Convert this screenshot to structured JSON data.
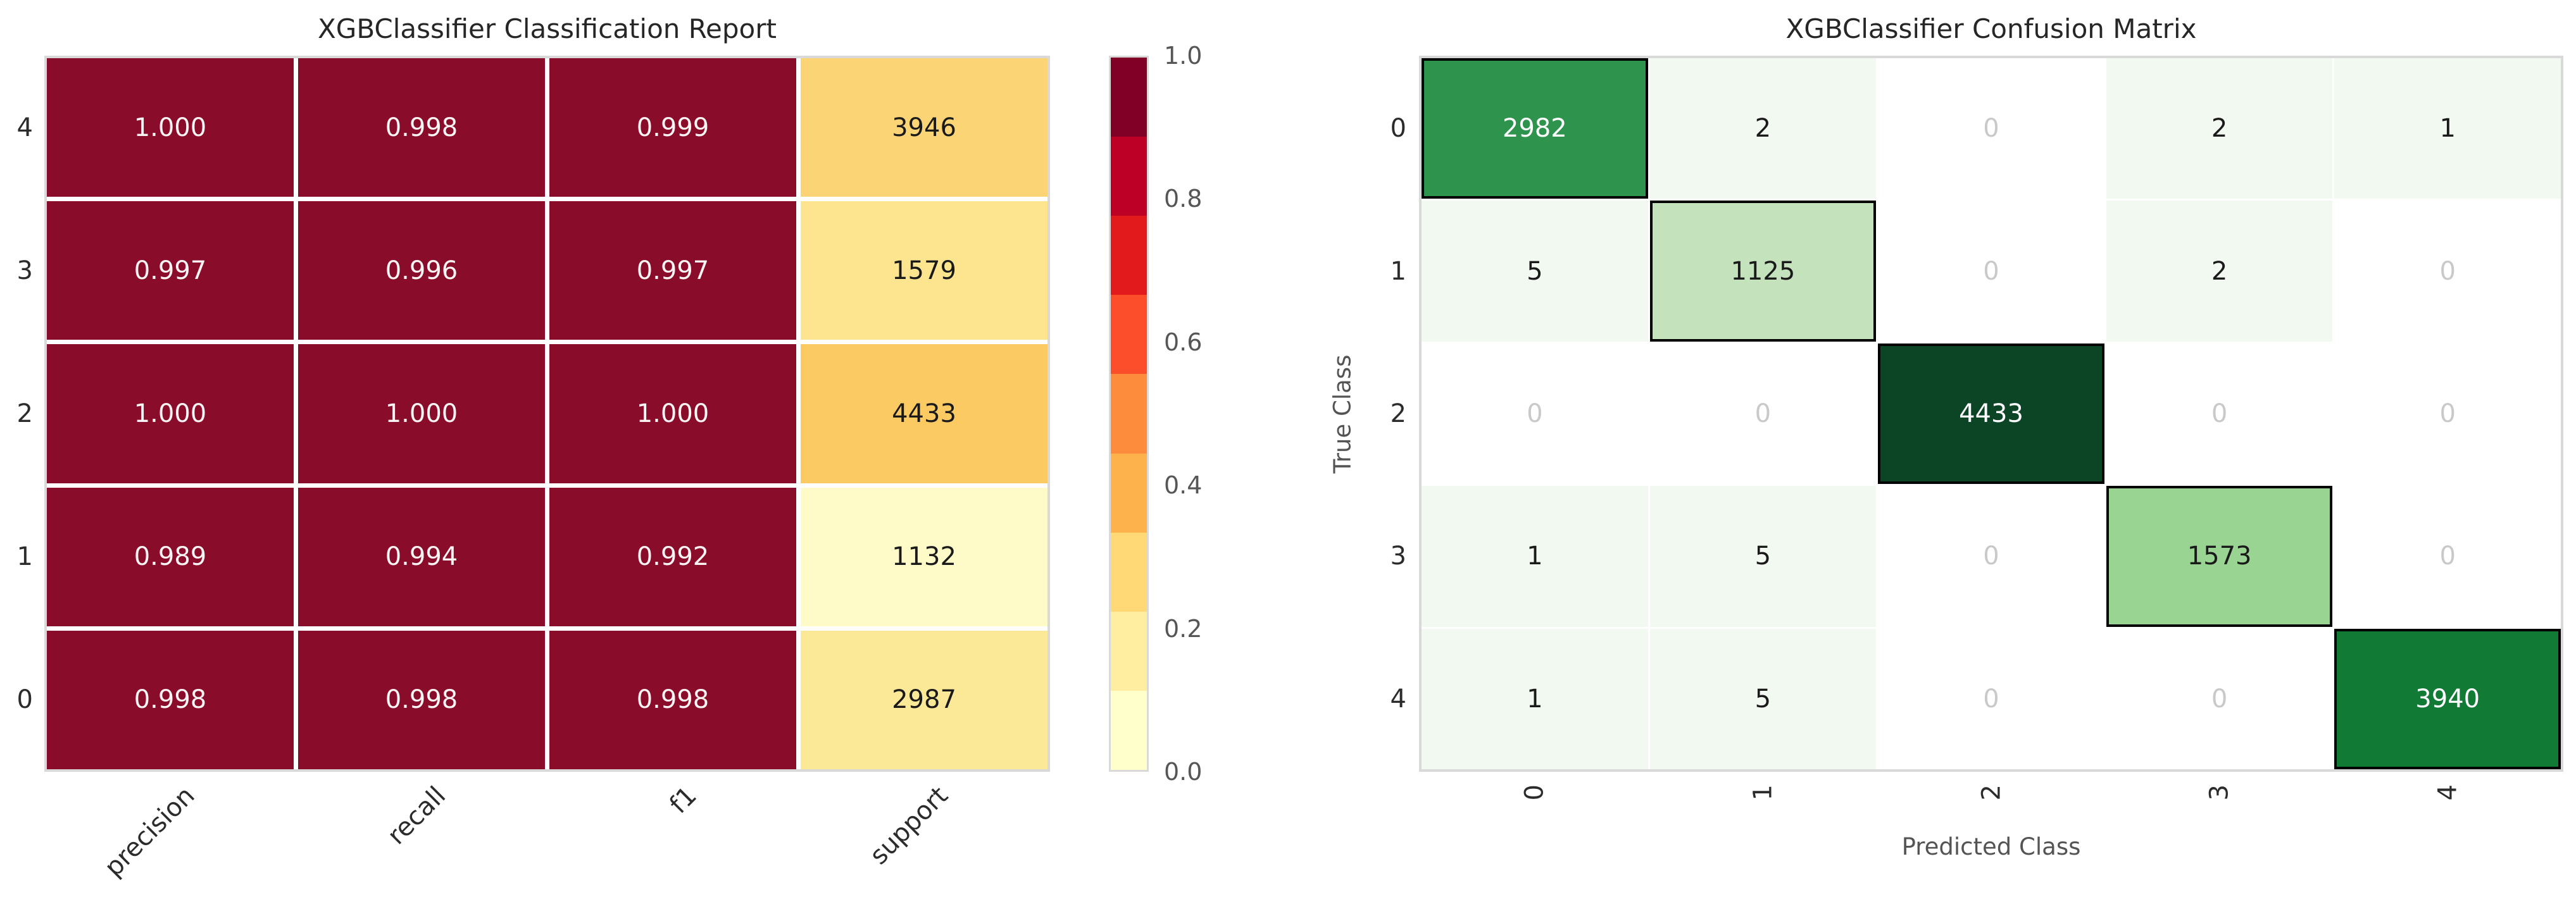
{
  "figure": {
    "background": "#ffffff"
  },
  "styles": {
    "spine_color": "#d9d9d9",
    "grid_line_color": "#ffffff",
    "title_color": "#262626",
    "tick_color": "#2b2b2b",
    "axis_label_color": "#545454",
    "colorbar_tick_color": "#565656",
    "diagonal_border_color": "#000000"
  },
  "chart_data": [
    {
      "type": "heatmap",
      "title": "XGBClassifier Classification Report",
      "xlabel": "",
      "ylabel": "",
      "row_labels": [
        "4",
        "3",
        "2",
        "1",
        "0"
      ],
      "col_labels": [
        "precision",
        "recall",
        "f1",
        "support"
      ],
      "values": [
        [
          1.0,
          0.998,
          0.999,
          3946
        ],
        [
          0.997,
          0.996,
          0.997,
          1579
        ],
        [
          1.0,
          1.0,
          1.0,
          4433
        ],
        [
          0.989,
          0.994,
          0.992,
          1132
        ],
        [
          0.998,
          0.998,
          0.998,
          2987
        ]
      ],
      "value_labels": [
        [
          "1.000",
          "0.998",
          "0.999",
          "3946"
        ],
        [
          "0.997",
          "0.996",
          "0.997",
          "1579"
        ],
        [
          "1.000",
          "1.000",
          "1.000",
          "4433"
        ],
        [
          "0.989",
          "0.994",
          "0.992",
          "1132"
        ],
        [
          "0.998",
          "0.998",
          "0.998",
          "2987"
        ]
      ],
      "cell_colors": [
        [
          "#8a0c2b",
          "#8a0c2b",
          "#8a0c2b",
          "#fbd476"
        ],
        [
          "#8a0c2b",
          "#8a0c2b",
          "#8a0c2b",
          "#fce58e"
        ],
        [
          "#8a0c2b",
          "#8a0c2b",
          "#8a0c2b",
          "#fbca63"
        ],
        [
          "#8a0c2b",
          "#8a0c2b",
          "#8a0c2b",
          "#fffbc8"
        ],
        [
          "#8a0c2b",
          "#8a0c2b",
          "#8a0c2b",
          "#fbe997"
        ]
      ],
      "text_colors": [
        [
          "#fdf4f4",
          "#fdf4f4",
          "#fdf4f4",
          "#1a1a1a"
        ],
        [
          "#fdf4f4",
          "#fdf4f4",
          "#fdf4f4",
          "#1a1a1a"
        ],
        [
          "#fdf4f4",
          "#fdf4f4",
          "#fdf4f4",
          "#1a1a1a"
        ],
        [
          "#fdf4f4",
          "#fdf4f4",
          "#fdf4f4",
          "#1a1a1a"
        ],
        [
          "#fdf4f4",
          "#fdf4f4",
          "#fdf4f4",
          "#1a1a1a"
        ]
      ],
      "colorbar": {
        "range": [
          0.0,
          1.0
        ],
        "tick_labels": [
          "1.0",
          "0.8",
          "0.6",
          "0.4",
          "0.2",
          "0.0"
        ],
        "segments_top_to_bottom": [
          "#800026",
          "#bd0026",
          "#e31a1c",
          "#fc4e2a",
          "#fd8d3c",
          "#feb24c",
          "#fed976",
          "#ffeda0",
          "#ffffcc"
        ]
      },
      "legend_position": "right-colorbar",
      "grid": false
    },
    {
      "type": "heatmap",
      "title": "XGBClassifier Confusion Matrix",
      "xlabel": "Predicted Class",
      "ylabel": "True Class",
      "row_labels": [
        "0",
        "1",
        "2",
        "3",
        "4"
      ],
      "col_labels": [
        "0",
        "1",
        "2",
        "3",
        "4"
      ],
      "values": [
        [
          2982,
          2,
          0,
          2,
          1
        ],
        [
          5,
          1125,
          0,
          2,
          0
        ],
        [
          0,
          0,
          4433,
          0,
          0
        ],
        [
          1,
          5,
          0,
          1573,
          0
        ],
        [
          1,
          5,
          0,
          0,
          3940
        ]
      ],
      "value_labels": [
        [
          "2982",
          "2",
          "0",
          "2",
          "1"
        ],
        [
          "5",
          "1125",
          "0",
          "2",
          "0"
        ],
        [
          "0",
          "0",
          "4433",
          "0",
          "0"
        ],
        [
          "1",
          "5",
          "0",
          "1573",
          "0"
        ],
        [
          "1",
          "5",
          "0",
          "0",
          "3940"
        ]
      ],
      "cell_colors": [
        [
          "#2e944d",
          "#f2f9f0",
          "#ffffff",
          "#f2f9f0",
          "#f2f9f0"
        ],
        [
          "#f2f9f0",
          "#c4e3bc",
          "#ffffff",
          "#f2f9f0",
          "#ffffff"
        ],
        [
          "#ffffff",
          "#ffffff",
          "#0b4526",
          "#ffffff",
          "#ffffff"
        ],
        [
          "#f2f9f0",
          "#f2f9f0",
          "#ffffff",
          "#99d492",
          "#ffffff"
        ],
        [
          "#f2f9f0",
          "#f2f9f0",
          "#ffffff",
          "#ffffff",
          "#117b35"
        ]
      ],
      "text_colors": [
        [
          "#ffffff",
          "#1a1a1a",
          "#c9c9c9",
          "#1a1a1a",
          "#1a1a1a"
        ],
        [
          "#1a1a1a",
          "#1a1a1a",
          "#c9c9c9",
          "#1a1a1a",
          "#c9c9c9"
        ],
        [
          "#c9c9c9",
          "#c9c9c9",
          "#ffffff",
          "#c9c9c9",
          "#c9c9c9"
        ],
        [
          "#1a1a1a",
          "#1a1a1a",
          "#c9c9c9",
          "#1a1a1a",
          "#c9c9c9"
        ],
        [
          "#1a1a1a",
          "#1a1a1a",
          "#c9c9c9",
          "#c9c9c9",
          "#ffffff"
        ]
      ],
      "diagonal_highlight": true,
      "grid": false
    }
  ]
}
